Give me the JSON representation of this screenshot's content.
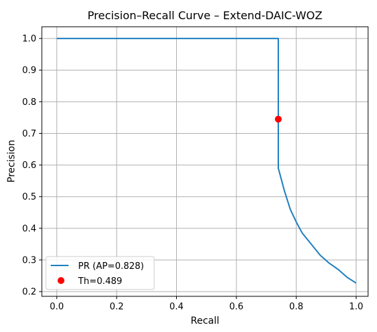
{
  "chart_data": {
    "type": "line",
    "title": "Precision–Recall Curve – Extend-DAIC-WOZ",
    "xlabel": "Recall",
    "ylabel": "Precision",
    "xlim": [
      -0.05,
      1.04
    ],
    "ylim": [
      0.185,
      1.037
    ],
    "xticks": [
      0.0,
      0.2,
      0.4,
      0.6,
      0.8,
      1.0
    ],
    "yticks": [
      0.2,
      0.3,
      0.4,
      0.5,
      0.6,
      0.7,
      0.8,
      0.9,
      1.0
    ],
    "xtick_labels": [
      "0.0",
      "0.2",
      "0.4",
      "0.6",
      "0.8",
      "1.0"
    ],
    "ytick_labels": [
      "0.2",
      "0.3",
      "0.4",
      "0.5",
      "0.6",
      "0.7",
      "0.8",
      "0.9",
      "1.0"
    ],
    "grid": true,
    "legend_position": "lower-left",
    "series": [
      {
        "name": "PR (AP=0.828)",
        "kind": "line",
        "color": "#1f7fbf",
        "x": [
          0.0,
          0.74,
          0.74,
          0.74,
          0.75,
          0.76,
          0.78,
          0.8,
          0.82,
          0.85,
          0.88,
          0.91,
          0.94,
          0.97,
          1.0
        ],
        "y": [
          1.0,
          1.0,
          0.745,
          0.59,
          0.555,
          0.52,
          0.46,
          0.42,
          0.385,
          0.35,
          0.315,
          0.29,
          0.27,
          0.245,
          0.227
        ]
      },
      {
        "name": "Th=0.489",
        "kind": "scatter",
        "color": "#ff0000",
        "x": [
          0.74
        ],
        "y": [
          0.745
        ]
      }
    ]
  }
}
